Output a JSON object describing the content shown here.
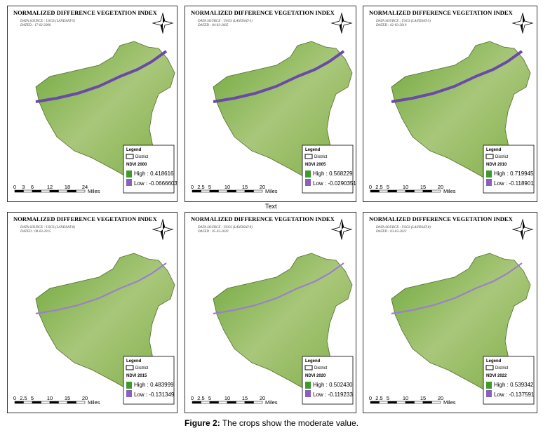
{
  "panels": [
    {
      "title": "NORMALIZED DIFFERENCE VEGETATION INDEX",
      "source": [
        "DATA SOURCE : USGS (LANDSAT-5)",
        "DATED : 17-02-2000"
      ],
      "legend": "Legend",
      "district": "District",
      "ndvi": "NDVI 2000",
      "high": "High : 0.418616",
      "low": "Low : -0.0666603",
      "scale": [
        "0",
        "3",
        "6",
        "12",
        "18",
        "24"
      ],
      "miles": "Miles"
    },
    {
      "title": "NORMALIZED DIFFERENCE VEGETATION INDEX",
      "source": [
        "DATA SOURCE : USGS (LANDSAT-5)",
        "DATED : 04-03-2005"
      ],
      "legend": "Legend",
      "district": "District",
      "ndvi": "NDVI 2005",
      "high": "High : 0.568229",
      "low": "Low : -0.0290351",
      "scale": [
        "0",
        "2.5",
        "5",
        "10",
        "15",
        "20"
      ],
      "miles": "Miles"
    },
    {
      "title": "NORMALIZED DIFFERENCE VEGETATION INDEX",
      "source": [
        "DATA SOURCE : USGS (LANDSAT-5)",
        "DATED : 02-03-2010"
      ],
      "legend": "Legend",
      "district": "District",
      "ndvi": "NDVI 2010",
      "high": "High : 0.719945",
      "low": "Low : -0.118901",
      "scale": [
        "0",
        "2.5",
        "5",
        "10",
        "15",
        "20"
      ],
      "miles": "Miles"
    },
    {
      "title": "NORMALIZED DIFFERENCE VEGETATION INDEX",
      "source": [
        "DATA SOURCE : USGS (LANDSAT-8)",
        "DATED : 08-03-2015"
      ],
      "legend": "Legend",
      "district": "District",
      "ndvi": "NDVI 2015",
      "high": "High : 0.483999",
      "low": "Low : -0.131349",
      "scale": [
        "0",
        "2.5",
        "5",
        "10",
        "15",
        "20"
      ],
      "miles": "Miles"
    },
    {
      "title": "NORMALIZED DIFFERENCE VEGETATION INDEX",
      "source": [
        "DATA SOURCE : USGS (LANDSAT-8)",
        "DATED : 05-03-2020"
      ],
      "legend": "Legend",
      "district": "District",
      "ndvi": "NDVI 2020",
      "high": "High : 0.502430",
      "low": "Low : -0.119233",
      "scale": [
        "0",
        "2.5",
        "5",
        "10",
        "15",
        "20"
      ],
      "miles": "Miles"
    },
    {
      "title": "NORMALIZED DIFFERENCE VEGETATION INDEX",
      "source": [
        "DATA SOURCE : USGS (LANDSAT-8)",
        "DATED : 03-03-2022"
      ],
      "legend": "Legend",
      "district": "District",
      "ndvi": "NDVI 2022",
      "high": "High : 0.539342",
      "low": "Low : -0.137591",
      "scale": [
        "0",
        "2.5",
        "5",
        "10",
        "15",
        "20"
      ],
      "miles": "Miles"
    }
  ],
  "middle_label": "Text",
  "caption": {
    "label": "Figure 2:",
    "text": "The crops show the moderate value."
  }
}
